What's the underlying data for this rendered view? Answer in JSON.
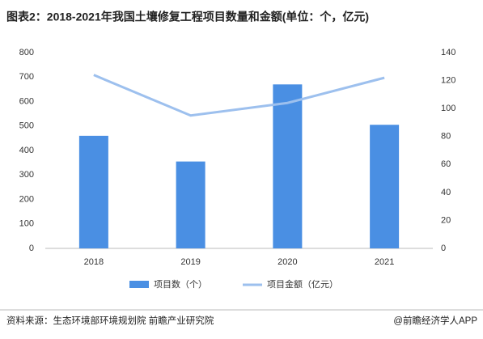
{
  "chart_data": {
    "type": "bar-line",
    "title": "图表2：2018-2021年我国土壤修复工程项目数量和金额(单位：个，亿元)",
    "categories": [
      "2018",
      "2019",
      "2020",
      "2021"
    ],
    "series": [
      {
        "name": "项目数（个）",
        "type": "bar",
        "color": "#4a8fe3",
        "values": [
          460,
          355,
          670,
          505
        ]
      },
      {
        "name": "项目金额（亿元）",
        "type": "line",
        "axis": "y2",
        "color": "#9dc0ee",
        "values": [
          124,
          95,
          104,
          122
        ]
      }
    ],
    "ylim": [
      0,
      800
    ],
    "yticks": [
      0,
      100,
      200,
      300,
      400,
      500,
      600,
      700,
      800
    ],
    "y2lim": [
      0,
      140
    ],
    "y2ticks": [
      0,
      20,
      40,
      60,
      80,
      100,
      120,
      140
    ],
    "grid": false,
    "source": "资料来源：生态环境部环境规划院 前瞻产业研究院",
    "credit": "@前瞻经济学人APP"
  }
}
